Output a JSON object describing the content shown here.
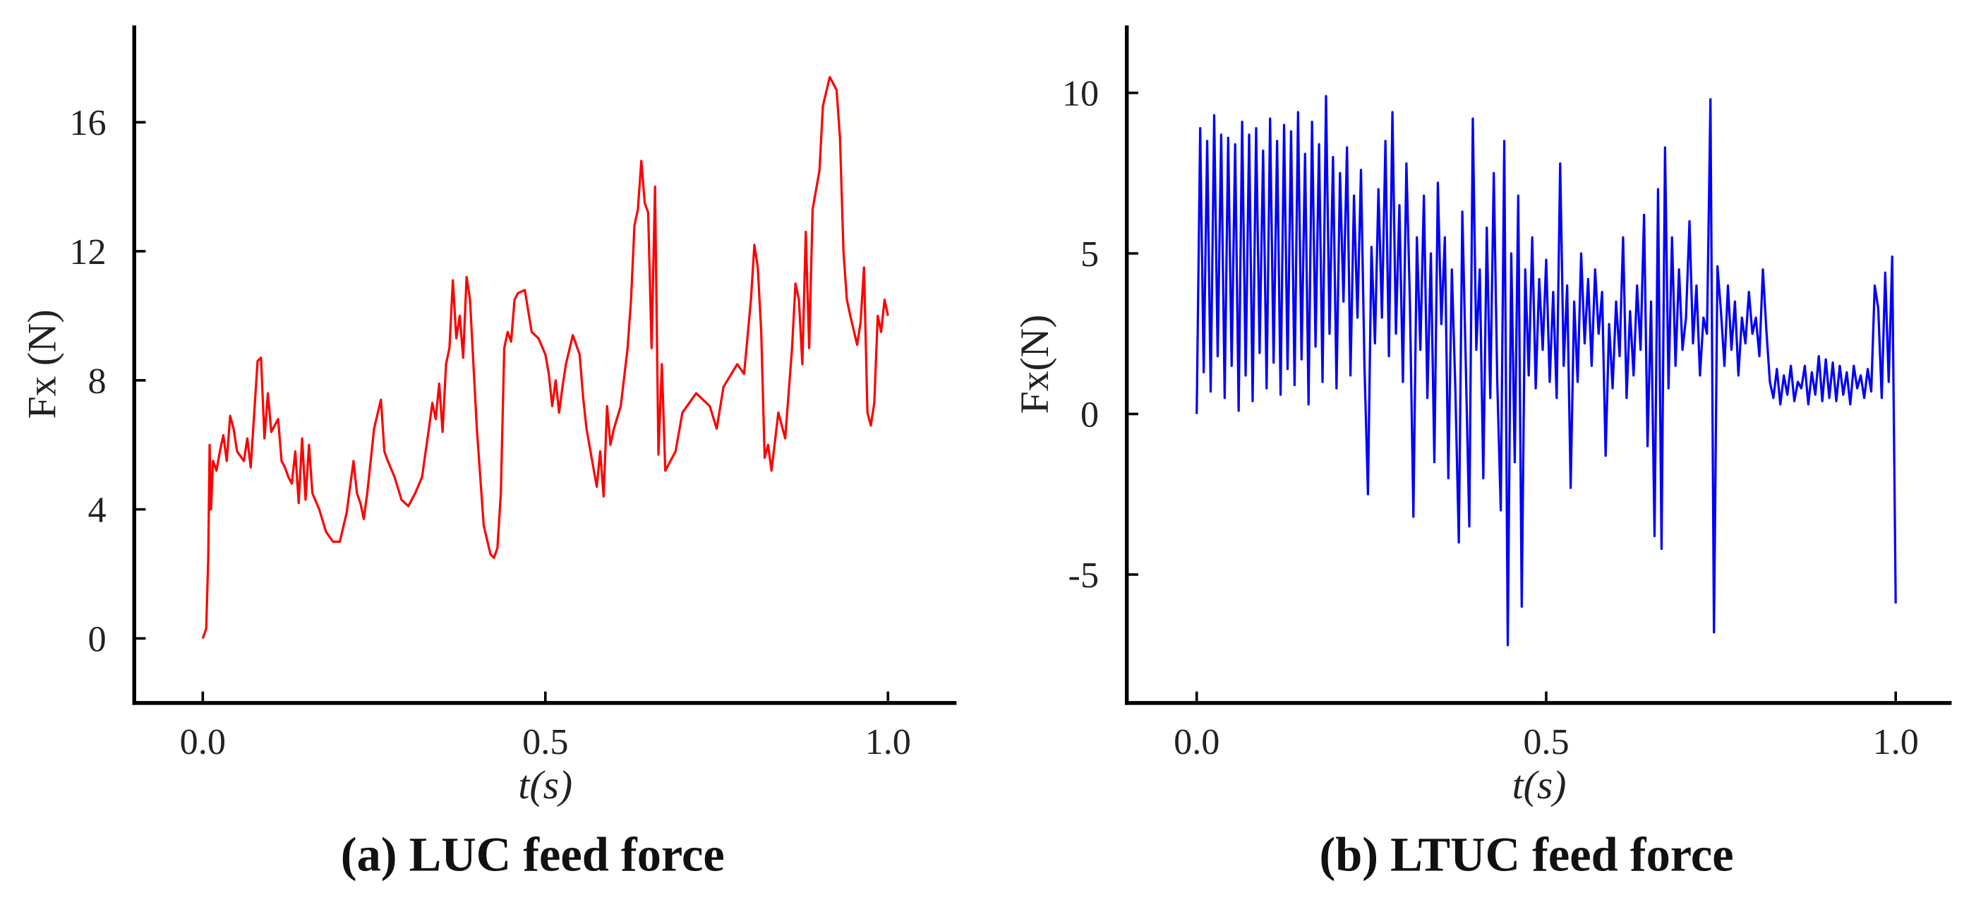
{
  "chart_data": [
    {
      "type": "line",
      "caption": "(a) LUC feed force",
      "x_label": "t(s)",
      "y_label": "Fx (N)",
      "color": "#ff0000",
      "xlim": [
        -0.1,
        1.1
      ],
      "ylim": [
        -2,
        19
      ],
      "xticks": [
        {
          "value": 0,
          "label": "0.0"
        },
        0.5,
        {
          "value": 1,
          "label": "1.0"
        }
      ],
      "yticks": [
        0,
        4,
        8,
        12,
        16
      ],
      "x": [
        0,
        0.005,
        0.008,
        0.01,
        0.012,
        0.015,
        0.02,
        0.025,
        0.03,
        0.035,
        0.04,
        0.045,
        0.05,
        0.06,
        0.065,
        0.07,
        0.08,
        0.085,
        0.09,
        0.095,
        0.1,
        0.105,
        0.11,
        0.115,
        0.12,
        0.125,
        0.13,
        0.135,
        0.14,
        0.145,
        0.15,
        0.155,
        0.16,
        0.17,
        0.18,
        0.19,
        0.2,
        0.21,
        0.22,
        0.225,
        0.23,
        0.235,
        0.24,
        0.25,
        0.26,
        0.265,
        0.27,
        0.28,
        0.29,
        0.3,
        0.31,
        0.32,
        0.33,
        0.335,
        0.34,
        0.345,
        0.35,
        0.355,
        0.36,
        0.365,
        0.37,
        0.375,
        0.38,
        0.385,
        0.39,
        0.4,
        0.41,
        0.42,
        0.425,
        0.43,
        0.435,
        0.44,
        0.445,
        0.45,
        0.455,
        0.46,
        0.47,
        0.48,
        0.49,
        0.5,
        0.505,
        0.51,
        0.515,
        0.52,
        0.525,
        0.53,
        0.54,
        0.55,
        0.555,
        0.56,
        0.57,
        0.575,
        0.58,
        0.585,
        0.59,
        0.595,
        0.6,
        0.61,
        0.62,
        0.625,
        0.63,
        0.635,
        0.64,
        0.645,
        0.65,
        0.655,
        0.66,
        0.665,
        0.67,
        0.675,
        0.69,
        0.7,
        0.72,
        0.74,
        0.75,
        0.76,
        0.78,
        0.79,
        0.8,
        0.805,
        0.81,
        0.815,
        0.82,
        0.825,
        0.83,
        0.835,
        0.84,
        0.85,
        0.86,
        0.865,
        0.87,
        0.875,
        0.88,
        0.885,
        0.89,
        0.9,
        0.905,
        0.915,
        0.925,
        0.93,
        0.935,
        0.94,
        0.945,
        0.955,
        0.96,
        0.965,
        0.97,
        0.975,
        0.98,
        0.985,
        0.99,
        0.995,
        1
      ],
      "values": [
        0,
        0.3,
        2.5,
        6,
        4,
        5.5,
        5.2,
        5.8,
        6.3,
        5.5,
        6.9,
        6.5,
        5.8,
        5.5,
        6.2,
        5.3,
        8.6,
        8.7,
        6.2,
        7.6,
        6.4,
        6.6,
        6.8,
        5.5,
        5.3,
        5,
        4.8,
        5.8,
        4.2,
        6.2,
        4.3,
        6,
        4.5,
        4,
        3.3,
        3,
        3,
        3.9,
        5.5,
        4.5,
        4.2,
        3.7,
        4.5,
        6.5,
        7.4,
        5.8,
        5.5,
        5,
        4.3,
        4.1,
        4.5,
        5,
        6.5,
        7.3,
        6.8,
        7.9,
        6.4,
        8.5,
        9,
        11.1,
        9.3,
        10,
        8.7,
        11.2,
        10.5,
        6.5,
        3.5,
        2.6,
        2.5,
        2.8,
        4.5,
        9,
        9.5,
        9.2,
        10.5,
        10.7,
        10.8,
        9.5,
        9.3,
        8.8,
        8.2,
        7.2,
        8,
        7,
        7.8,
        8.5,
        9.4,
        8.8,
        7.5,
        6.5,
        5.3,
        4.7,
        5.8,
        4.4,
        7.2,
        6,
        6.5,
        7.2,
        9,
        10.5,
        12.8,
        13.3,
        14.8,
        13.5,
        13.2,
        9,
        14,
        5.7,
        8.5,
        5.2,
        5.8,
        7,
        7.6,
        7.2,
        6.5,
        7.8,
        8.5,
        8.2,
        10.5,
        12.2,
        11.5,
        9.5,
        5.6,
        6,
        5.2,
        6.1,
        7,
        6.2,
        9,
        11,
        10.5,
        8.5,
        12.6,
        9,
        13.3,
        14.5,
        16.5,
        17.4,
        17,
        15.5,
        12,
        10.5,
        10,
        9.1,
        9.8,
        11.5,
        7,
        6.6,
        7.3,
        10,
        9.5,
        10.5,
        10
      ]
    },
    {
      "type": "line",
      "caption": "(b) LTUC feed force",
      "x_label": "t(s)",
      "y_label": "Fx(N)",
      "color": "#0000ff",
      "xlim": [
        -0.1,
        1.08
      ],
      "ylim": [
        -9,
        12.1
      ],
      "xticks": [
        {
          "value": 0,
          "label": "0.0"
        },
        0.5,
        {
          "value": 1,
          "label": "1.0"
        }
      ],
      "yticks": [
        -5,
        0,
        5,
        10
      ],
      "x": [
        0,
        0.005,
        0.01,
        0.015,
        0.02,
        0.025,
        0.03,
        0.035,
        0.04,
        0.045,
        0.05,
        0.055,
        0.06,
        0.065,
        0.07,
        0.075,
        0.08,
        0.085,
        0.09,
        0.095,
        0.1,
        0.105,
        0.11,
        0.115,
        0.12,
        0.125,
        0.13,
        0.135,
        0.14,
        0.145,
        0.15,
        0.155,
        0.16,
        0.165,
        0.17,
        0.175,
        0.18,
        0.185,
        0.19,
        0.195,
        0.2,
        0.205,
        0.21,
        0.215,
        0.22,
        0.225,
        0.23,
        0.235,
        0.24,
        0.245,
        0.25,
        0.255,
        0.26,
        0.265,
        0.27,
        0.275,
        0.28,
        0.285,
        0.29,
        0.295,
        0.3,
        0.305,
        0.31,
        0.315,
        0.32,
        0.325,
        0.33,
        0.335,
        0.34,
        0.345,
        0.35,
        0.355,
        0.36,
        0.365,
        0.37,
        0.375,
        0.38,
        0.385,
        0.39,
        0.395,
        0.4,
        0.405,
        0.41,
        0.415,
        0.42,
        0.425,
        0.43,
        0.435,
        0.44,
        0.445,
        0.45,
        0.455,
        0.46,
        0.465,
        0.47,
        0.475,
        0.48,
        0.485,
        0.49,
        0.495,
        0.5,
        0.505,
        0.51,
        0.515,
        0.52,
        0.525,
        0.53,
        0.535,
        0.54,
        0.545,
        0.55,
        0.555,
        0.56,
        0.565,
        0.57,
        0.575,
        0.58,
        0.585,
        0.59,
        0.595,
        0.6,
        0.605,
        0.61,
        0.615,
        0.62,
        0.625,
        0.63,
        0.635,
        0.64,
        0.645,
        0.65,
        0.655,
        0.66,
        0.665,
        0.67,
        0.675,
        0.68,
        0.685,
        0.69,
        0.695,
        0.7,
        0.705,
        0.71,
        0.715,
        0.72,
        0.725,
        0.73,
        0.735,
        0.74,
        0.745,
        0.75,
        0.755,
        0.76,
        0.765,
        0.77,
        0.775,
        0.78,
        0.785,
        0.79,
        0.795,
        0.8,
        0.805,
        0.81,
        0.815,
        0.82,
        0.825,
        0.83,
        0.835,
        0.84,
        0.845,
        0.85,
        0.855,
        0.86,
        0.865,
        0.87,
        0.875,
        0.88,
        0.885,
        0.89,
        0.895,
        0.9,
        0.905,
        0.91,
        0.915,
        0.92,
        0.925,
        0.93,
        0.935,
        0.94,
        0.945,
        0.95,
        0.955,
        0.96,
        0.965,
        0.97,
        0.975,
        0.98,
        0.985,
        0.99,
        0.995,
        1
      ],
      "values": [
        0,
        8.9,
        1.3,
        8.5,
        0.7,
        9.3,
        1.8,
        8.7,
        0.5,
        8.6,
        1.5,
        8.4,
        0.1,
        9.1,
        1.2,
        8.7,
        0.4,
        8.9,
        1.9,
        8.2,
        0.8,
        9.2,
        1.6,
        8.5,
        0.6,
        9.0,
        1.4,
        8.8,
        0.9,
        9.4,
        1.7,
        8.1,
        0.3,
        9.1,
        2.1,
        8.4,
        1.0,
        9.9,
        2.5,
        8.0,
        0.8,
        7.5,
        3.5,
        8.3,
        1.2,
        6.8,
        3.0,
        7.6,
        1.5,
        -2.5,
        5.2,
        2.2,
        7.0,
        3.0,
        8.5,
        1.8,
        9.4,
        2.5,
        6.5,
        1.0,
        7.8,
        3.5,
        -3.2,
        5.5,
        2.0,
        6.8,
        0.5,
        5.0,
        -1.5,
        7.2,
        2.8,
        5.5,
        -2.0,
        4.5,
        0.8,
        -4.0,
        6.3,
        1.5,
        -3.5,
        9.2,
        2.0,
        4.5,
        -2.0,
        5.8,
        0.5,
        7.5,
        1.0,
        -3.0,
        8.5,
        -7.2,
        5.0,
        -1.5,
        6.8,
        -6.0,
        4.5,
        1.2,
        5.5,
        0.8,
        4.2,
        2.0,
        4.8,
        1.0,
        3.8,
        0.5,
        7.8,
        1.5,
        4.0,
        -2.3,
        3.5,
        1.0,
        5.0,
        2.2,
        4.2,
        1.5,
        4.5,
        2.5,
        3.8,
        -1.3,
        2.8,
        0.8,
        3.5,
        1.8,
        5.5,
        0.5,
        3.2,
        1.2,
        4.0,
        2.0,
        6.2,
        -1.0,
        3.5,
        -3.8,
        7.0,
        -4.2,
        8.3,
        0.8,
        5.5,
        1.5,
        4.5,
        2.0,
        3.0,
        6.0,
        2.2,
        4.0,
        1.2,
        3.0,
        2.5,
        9.8,
        -6.8,
        4.6,
        3.2,
        1.5,
        4.0,
        2.0,
        3.5,
        1.2,
        3.0,
        2.2,
        3.8,
        2.5,
        3.0,
        1.8,
        4.5,
        2.6,
        1.0,
        0.5,
        1.4,
        0.3,
        1.2,
        0.6,
        1.5,
        0.4,
        1.0,
        0.8,
        1.5,
        0.3,
        1.3,
        0.6,
        1.8,
        0.4,
        1.7,
        0.5,
        1.6,
        0.4,
        1.5,
        0.6,
        1.3,
        0.3,
        1.5,
        0.8,
        1.2,
        0.5,
        1.4,
        0.7,
        4.0,
        3.3,
        0.5,
        4.4,
        1.0,
        4.9,
        -5.9
      ]
    }
  ]
}
